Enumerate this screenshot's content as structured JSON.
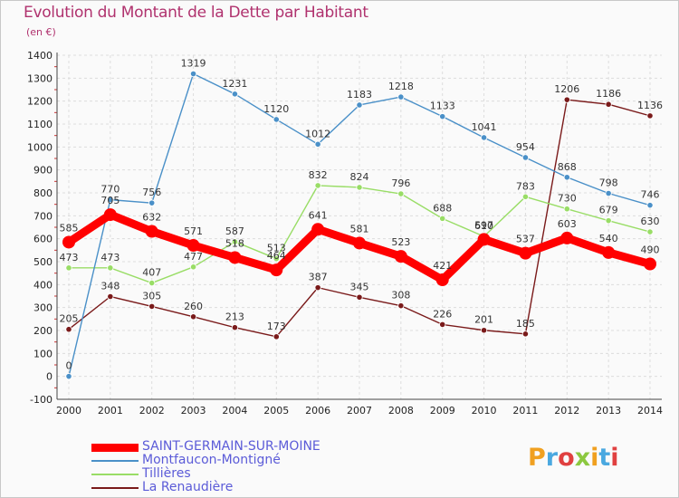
{
  "title": "Evolution du Montant de la Dette par Habitant",
  "unit": "(en €)",
  "logo": {
    "text": "Proxiti",
    "colors": [
      "#f0a020",
      "#4aa8e0",
      "#e04040",
      "#8cc840",
      "#f0a020",
      "#4aa8e0",
      "#e04040"
    ]
  },
  "chart_data": {
    "type": "line",
    "x": [
      "2000",
      "2001",
      "2002",
      "2003",
      "2004",
      "2005",
      "2006",
      "2007",
      "2008",
      "2009",
      "2010",
      "2011",
      "2012",
      "2013",
      "2014"
    ],
    "ylim": [
      -100,
      1400
    ],
    "yticks": [
      "-100",
      "0",
      "100",
      "200",
      "300",
      "400",
      "500",
      "600",
      "700",
      "800",
      "900",
      "1000",
      "1100",
      "1200",
      "1300",
      "1400"
    ],
    "grid": true,
    "legend_position": "bottom",
    "series": [
      {
        "name": "La Renaudière",
        "color": "#7a1a1a",
        "values": [
          205,
          348,
          305,
          260,
          213,
          173,
          387,
          345,
          308,
          226,
          201,
          185,
          1206,
          1186,
          1136
        ],
        "labels": [
          "205",
          "348",
          "305",
          "260",
          "213",
          "173",
          "387",
          "345",
          "308",
          "226",
          "201",
          "185",
          "1206",
          "1186",
          "1136"
        ]
      },
      {
        "name": "Tillières",
        "color": "#99dd66",
        "values": [
          473,
          473,
          407,
          477,
          587,
          513,
          832,
          824,
          796,
          688,
          610,
          783,
          730,
          679,
          630
        ],
        "labels": [
          "473",
          "473",
          "407",
          "477",
          "587",
          "513",
          "832",
          "824",
          "796",
          "688",
          "610",
          "783",
          "730",
          "679",
          "630"
        ]
      },
      {
        "name": "Montfaucon-Montigné",
        "color": "#4a90c8",
        "values": [
          0,
          770,
          756,
          1319,
          1231,
          1120,
          1012,
          1183,
          1218,
          1133,
          1041,
          954,
          868,
          798,
          746
        ],
        "labels": [
          "0",
          "770",
          "756",
          "1319",
          "1231",
          "1120",
          "1012",
          "1183",
          "1218",
          "1133",
          "1041",
          "954",
          "868",
          "798",
          "746"
        ]
      },
      {
        "name": "SAINT-GERMAIN-SUR-MOINE",
        "color": "#ff0000",
        "values": [
          585,
          705,
          632,
          571,
          518,
          464,
          641,
          581,
          523,
          421,
          597,
          537,
          603,
          540,
          490
        ],
        "labels": [
          "585",
          "705",
          "632",
          "571",
          "518",
          "464",
          "641",
          "581",
          "523",
          "421",
          "597",
          "537",
          "603",
          "540",
          "490"
        ]
      }
    ],
    "legend": [
      "SAINT-GERMAIN-SUR-MOINE",
      "Montfaucon-Montigné",
      "Tillières",
      "La Renaudière"
    ]
  }
}
